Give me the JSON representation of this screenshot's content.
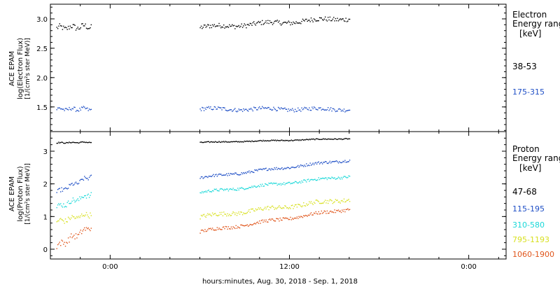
{
  "chart_data": [
    {
      "type": "scatter",
      "panel": "electron",
      "ylabel_lines": [
        "ACE EPAM",
        "log(Electron Flux)",
        "[1/(cm²s ster MeV)]"
      ],
      "ylim": [
        1.08,
        3.25
      ],
      "yticks": [
        1.5,
        2.0,
        2.5,
        3.0
      ],
      "ytick_labels": [
        "1.5",
        "2.0",
        "2.5",
        "3.0"
      ],
      "legend": {
        "title_lines": [
          "Electron",
          "Energy range",
          "[keV]"
        ],
        "entries": [
          {
            "label": "38-53",
            "color": "#000000"
          },
          {
            "label": "175-315",
            "color": "#1f4fc6"
          }
        ]
      },
      "series": [
        {
          "name": "38-53",
          "color": "#000000",
          "segments": [
            {
              "t0": -3.6,
              "t1": -1.3,
              "base": 2.85,
              "noise": 0.06,
              "trend": 0.03
            },
            {
              "t0": 6.0,
              "t1": 16.0,
              "base": 2.86,
              "noise": 0.05,
              "trend": 0.16
            }
          ]
        },
        {
          "name": "175-315",
          "color": "#1f4fc6",
          "segments": [
            {
              "t0": -3.6,
              "t1": -1.3,
              "base": 1.47,
              "noise": 0.04,
              "trend": 0.0
            },
            {
              "t0": 6.0,
              "t1": 16.0,
              "base": 1.47,
              "noise": 0.04,
              "trend": 0.0
            }
          ]
        }
      ]
    },
    {
      "type": "scatter",
      "panel": "proton",
      "ylabel_lines": [
        "ACE EPAM",
        "log(Proton Flux)",
        "[1/(cm²s ster MeV)]"
      ],
      "ylim": [
        -0.3,
        3.6
      ],
      "yticks": [
        0,
        1,
        2,
        3
      ],
      "ytick_labels": [
        "0",
        "1",
        "2",
        "3"
      ],
      "legend": {
        "title_lines": [
          "Proton",
          "Energy range",
          "[keV]"
        ],
        "entries": [
          {
            "label": "47-68",
            "color": "#000000"
          },
          {
            "label": "115-195",
            "color": "#1f4fc6"
          },
          {
            "label": "310-580",
            "color": "#19d8d8"
          },
          {
            "label": "795-1193",
            "color": "#d8e020"
          },
          {
            "label": "1060-1900",
            "color": "#e0561c"
          }
        ]
      },
      "series": [
        {
          "name": "47-68",
          "color": "#000000",
          "segments": [
            {
              "t0": -3.6,
              "t1": -1.3,
              "base": 3.27,
              "noise": 0.02,
              "trend": 0.02
            },
            {
              "t0": 6.0,
              "t1": 16.0,
              "base": 3.28,
              "noise": 0.02,
              "trend": 0.12
            }
          ]
        },
        {
          "name": "115-195",
          "color": "#1f4fc6",
          "segments": [
            {
              "t0": -3.6,
              "t1": -1.3,
              "base": 1.75,
              "noise": 0.08,
              "trend": 0.5
            },
            {
              "t0": 6.0,
              "t1": 16.0,
              "base": 2.2,
              "noise": 0.05,
              "trend": 0.55
            }
          ]
        },
        {
          "name": "310-580",
          "color": "#19d8d8",
          "segments": [
            {
              "t0": -3.6,
              "t1": -1.3,
              "base": 1.3,
              "noise": 0.1,
              "trend": 0.4
            },
            {
              "t0": 6.0,
              "t1": 16.0,
              "base": 1.75,
              "noise": 0.05,
              "trend": 0.5
            }
          ]
        },
        {
          "name": "795-1193",
          "color": "#d8e020",
          "segments": [
            {
              "t0": -3.6,
              "t1": -1.3,
              "base": 0.85,
              "noise": 0.1,
              "trend": 0.25
            },
            {
              "t0": 6.0,
              "t1": 16.0,
              "base": 1.0,
              "noise": 0.08,
              "trend": 0.55
            }
          ]
        },
        {
          "name": "1060-1900",
          "color": "#e0561c",
          "segments": [
            {
              "t0": -3.6,
              "t1": -1.3,
              "base": 0.1,
              "noise": 0.12,
              "trend": 0.6
            },
            {
              "t0": 6.0,
              "t1": 16.0,
              "base": 0.55,
              "noise": 0.06,
              "trend": 0.7
            }
          ]
        }
      ]
    }
  ],
  "xaxis": {
    "xlim": [
      -4.0,
      26.5
    ],
    "ticks": [
      0,
      12,
      24
    ],
    "tick_labels": [
      "0:00",
      "12:00",
      "0:00"
    ],
    "minor_step": 2,
    "label": "hours:minutes, Aug. 30, 2018 - Sep.  1, 2018"
  }
}
